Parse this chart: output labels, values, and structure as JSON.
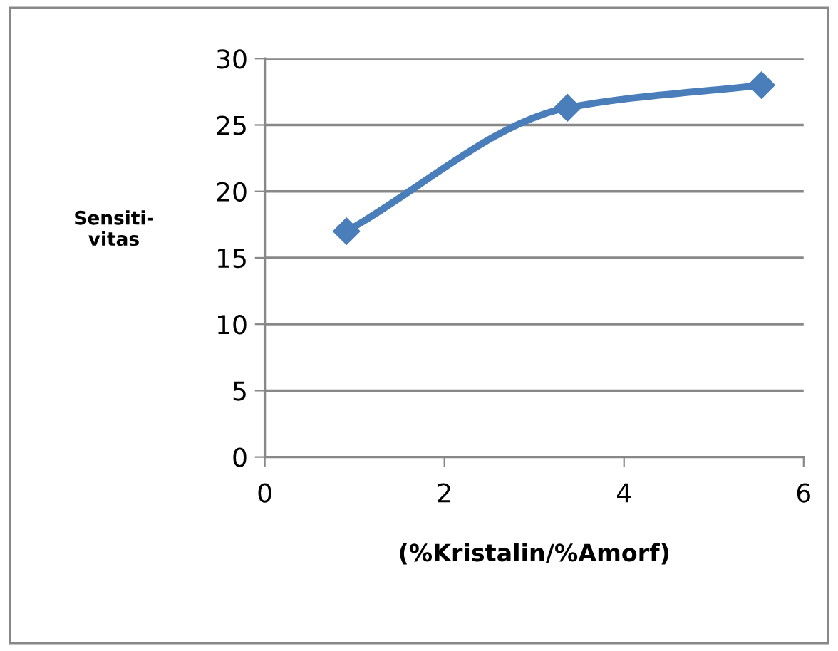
{
  "chart_data": {
    "type": "line",
    "xlabel": "(%Kristalin/%Amorf)",
    "ylabel": "Sensiti-\nvitas",
    "x": [
      0.91,
      3.37,
      5.53
    ],
    "series": [
      {
        "color": "#4a7ebb",
        "values": [
          17.0,
          26.3,
          28.0
        ]
      }
    ],
    "xlim": [
      0,
      6
    ],
    "xticks": [
      0,
      2,
      4,
      6
    ],
    "ylim": [
      0,
      30
    ],
    "yticks": [
      0,
      5,
      10,
      15,
      20,
      25,
      30
    ],
    "grid": "y",
    "marker": "diamond",
    "line_style": "solid"
  }
}
